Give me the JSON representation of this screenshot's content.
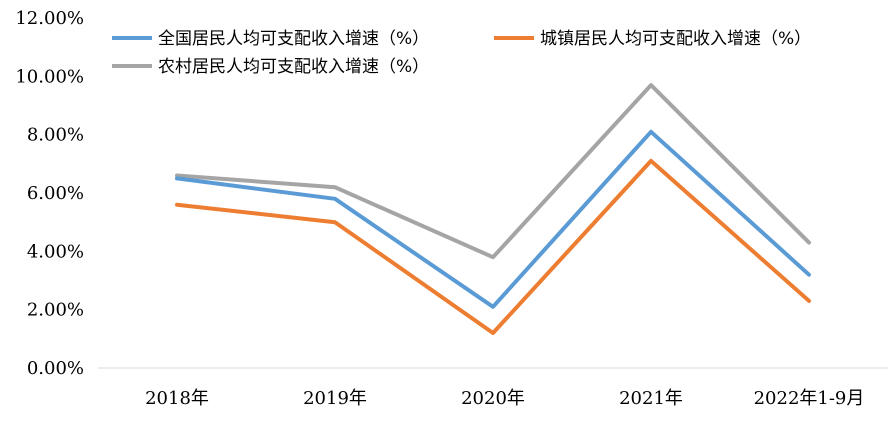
{
  "chart_data": {
    "type": "line",
    "categories": [
      "2018年",
      "2019年",
      "2020年",
      "2021年",
      "2022年1-9月"
    ],
    "yticks": [
      "0.00%",
      "2.00%",
      "4.00%",
      "6.00%",
      "8.00%",
      "10.00%",
      "12.00%"
    ],
    "ylim": [
      0,
      12
    ],
    "grid": false,
    "legend_position": "top",
    "series": [
      {
        "name": "全国居民人均可支配收入增速（%）",
        "values": [
          6.5,
          5.8,
          2.1,
          8.1,
          3.2
        ],
        "color": "#5b9bd5"
      },
      {
        "name": "城镇居民人均可支配收入增速（%）",
        "values": [
          5.6,
          5.0,
          1.2,
          7.1,
          2.3
        ],
        "color": "#ed7d31"
      },
      {
        "name": "农村居民人均可支配收入增速（%）",
        "values": [
          6.6,
          6.2,
          3.8,
          9.7,
          4.3
        ],
        "color": "#a5a5a5"
      }
    ]
  }
}
